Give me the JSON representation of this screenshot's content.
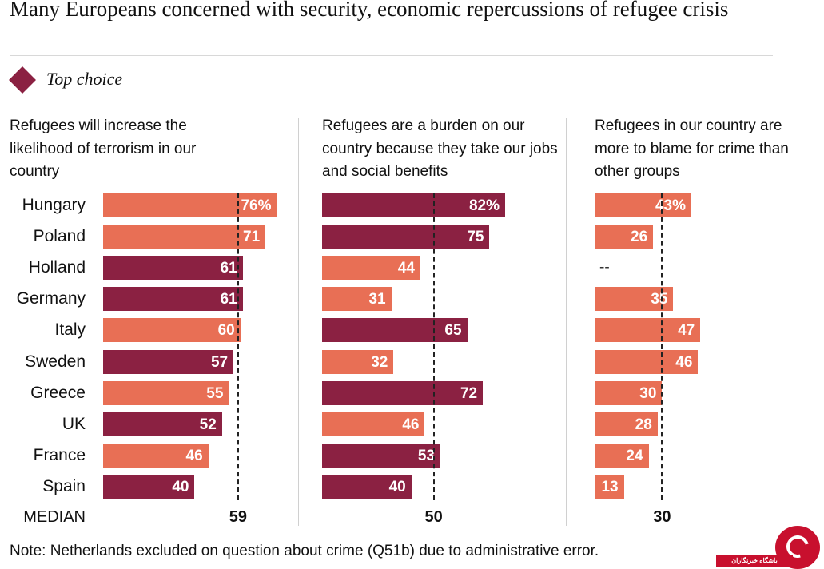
{
  "title": "Many Europeans concerned with security, economic repercussions of refugee crisis",
  "legend_label": "Top choice",
  "colors": {
    "top_choice": "#8b2142",
    "other": "#e86f55"
  },
  "note": "Note: Netherlands excluded on question about crime (Q51b) due to administrative error.",
  "median_label": "MEDIAN",
  "logo_text": "باشگاه خبرنگاران",
  "chart_data": [
    {
      "type": "bar",
      "title": "Refugees will increase the likelihood of terrorism in our country",
      "categories": [
        "Hungary",
        "Poland",
        "Holland",
        "Germany",
        "Italy",
        "Sweden",
        "Greece",
        "UK",
        "France",
        "Spain"
      ],
      "values": [
        76,
        71,
        61,
        61,
        60,
        57,
        55,
        52,
        46,
        40
      ],
      "labels": [
        "76%",
        "71",
        "61",
        "61",
        "60",
        "57",
        "55",
        "52",
        "46",
        "40"
      ],
      "top_choice": [
        false,
        false,
        true,
        true,
        false,
        true,
        false,
        true,
        false,
        true
      ],
      "median": 59,
      "xlim": [
        0,
        100
      ]
    },
    {
      "type": "bar",
      "title": "Refugees are a burden on our country because they take our jobs and social benefits",
      "categories": [
        "Hungary",
        "Poland",
        "Holland",
        "Germany",
        "Italy",
        "Sweden",
        "Greece",
        "UK",
        "France",
        "Spain"
      ],
      "values": [
        82,
        75,
        44,
        31,
        65,
        32,
        72,
        46,
        53,
        40
      ],
      "labels": [
        "82%",
        "75",
        "44",
        "31",
        "65",
        "32",
        "72",
        "46",
        "53",
        "40"
      ],
      "top_choice": [
        true,
        true,
        false,
        false,
        true,
        false,
        true,
        false,
        true,
        true
      ],
      "median": 50,
      "xlim": [
        0,
        100
      ]
    },
    {
      "type": "bar",
      "title": "Refugees in our country are more to blame for crime than other groups",
      "categories": [
        "Hungary",
        "Poland",
        "Holland",
        "Germany",
        "Italy",
        "Sweden",
        "Greece",
        "UK",
        "France",
        "Spain"
      ],
      "values": [
        43,
        26,
        null,
        35,
        47,
        46,
        30,
        28,
        24,
        13
      ],
      "labels": [
        "43%",
        "26",
        "--",
        "35",
        "47",
        "46",
        "30",
        "28",
        "24",
        "13"
      ],
      "top_choice": [
        false,
        false,
        false,
        false,
        false,
        false,
        false,
        false,
        false,
        false
      ],
      "median": 30,
      "xlim": [
        0,
        100
      ]
    }
  ]
}
